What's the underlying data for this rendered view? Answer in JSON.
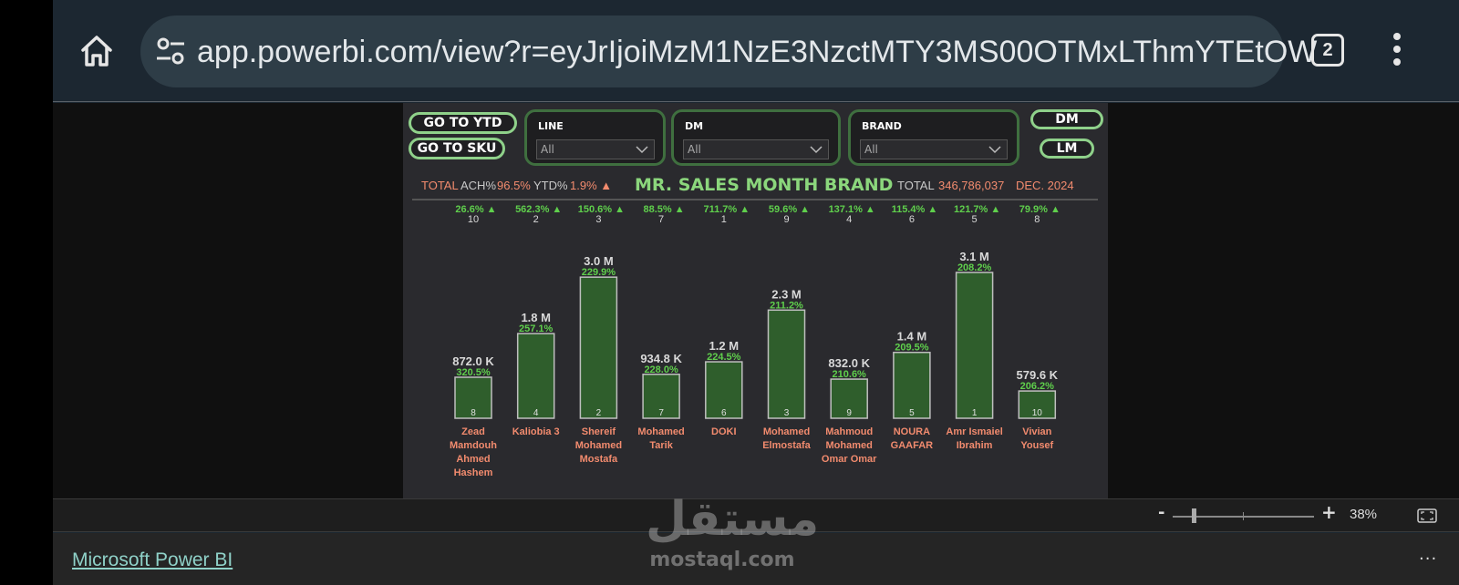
{
  "browser": {
    "url": "app.powerbi.com/view?r=eyJrIjoiMzM1NzE3NzctMTY3MS00OTMxLThmYTEtOW",
    "tab_count": "2"
  },
  "report": {
    "buttons": {
      "go_ytd": "GO TO YTD",
      "go_sku": "GO TO SKU",
      "dm": "DM",
      "lm": "LM"
    },
    "slicers": [
      {
        "title": "LINE",
        "value": "All"
      },
      {
        "title": "DM",
        "value": "All"
      },
      {
        "title": "BRAND",
        "value": "All"
      }
    ],
    "header": {
      "total_label": "TOTAL",
      "ach_label": "ACH%",
      "ach_value": "96.5%",
      "ytd_label": "YTD%",
      "ytd_value": "1.9% ▲",
      "title": "MR. SALES MONTH BRAND",
      "total2_label": "TOTAL",
      "total2_value": "346,786,037",
      "period": "DEC. 2024"
    }
  },
  "chart_data": {
    "type": "bar",
    "title": "MR. SALES MONTH BRAND",
    "categories": [
      "Zead Mamdouh Ahmed Hashem",
      "Kaliobia 3",
      "Shereif Mohamed Mostafa",
      "Mohamed Tarik",
      "DOKI",
      "Mohamed Elmostafa",
      "Mahmoud Mohamed Omar Omar",
      "NOURA GAAFAR",
      "Amr Ismaiel Ibrahim",
      "Vivian Yousef"
    ],
    "category_lines": [
      [
        "Zead",
        "Mamdouh",
        "Ahmed",
        "Hashem"
      ],
      [
        "Kaliobia 3"
      ],
      [
        "Shereif",
        "Mohamed",
        "Mostafa"
      ],
      [
        "Mohamed",
        "Tarik"
      ],
      [
        "DOKI"
      ],
      [
        "Mohamed",
        "Elmostafa"
      ],
      [
        "Mahmoud",
        "Mohamed",
        "Omar Omar"
      ],
      [
        "NOURA",
        "GAAFAR"
      ],
      [
        "Amr Ismaiel",
        "Ibrahim"
      ],
      [
        "Vivian",
        "Yousef"
      ]
    ],
    "values": [
      872.0,
      1800,
      3000,
      934.8,
      1200,
      2300,
      832.0,
      1400,
      3100,
      579.6
    ],
    "value_unit": "K",
    "value_labels": [
      "872.0 K",
      "1.8 M",
      "3.0 M",
      "934.8 K",
      "1.2 M",
      "2.3 M",
      "832.0 K",
      "1.4 M",
      "3.1 M",
      "579.6 K"
    ],
    "pct_labels": [
      "320.5%",
      "257.1%",
      "229.9%",
      "228.0%",
      "224.5%",
      "211.2%",
      "210.6%",
      "209.5%",
      "208.2%",
      "206.2%"
    ],
    "top_pct": [
      "26.6% ▲",
      "562.3% ▲",
      "150.6% ▲",
      "88.5% ▲",
      "711.7% ▲",
      "59.6% ▲",
      "137.1% ▲",
      "115.4% ▲",
      "121.7% ▲",
      "79.9% ▲"
    ],
    "top_rank": [
      "10",
      "2",
      "3",
      "7",
      "1",
      "9",
      "4",
      "6",
      "5",
      "8"
    ],
    "bar_rank": [
      "8",
      "4",
      "2",
      "7",
      "6",
      "3",
      "9",
      "5",
      "1",
      "10"
    ],
    "ylim": [
      0,
      3100
    ],
    "colors": {
      "bar": "#2f5e2c",
      "bar_border": "#bfbfbf",
      "pct": "#5fcf4c",
      "name": "#f28b6e",
      "value": "#d9d9d9"
    }
  },
  "statusbar": {
    "zoom_minus": "-",
    "zoom_plus": "+",
    "zoom_pct": "38%"
  },
  "footer": {
    "link": "Microsoft Power BI",
    "more": "...",
    "watermark_ar": "مستقل",
    "watermark_en": "mostaql.com"
  }
}
